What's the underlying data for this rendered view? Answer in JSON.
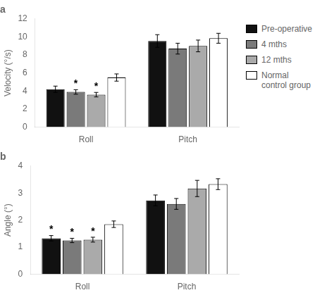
{
  "chart_data": [
    {
      "type": "bar",
      "title": "a",
      "y_label": "Velocity (°/s)",
      "categories": [
        "Roll",
        "Pitch"
      ],
      "series": [
        {
          "name": "Pre-operative",
          "color": "#111111",
          "values": [
            4.2,
            9.55
          ],
          "errors": [
            0.35,
            0.7
          ]
        },
        {
          "name": "4 mths",
          "color": "#7a7a7a",
          "values": [
            3.9,
            8.7
          ],
          "errors": [
            0.25,
            0.6
          ]
        },
        {
          "name": "12 mths",
          "color": "#aaaaaa",
          "values": [
            3.6,
            9.0
          ],
          "errors": [
            0.25,
            0.65
          ]
        },
        {
          "name": "Normal\ncontrol group",
          "color": "#ffffff",
          "values": [
            5.5,
            9.85
          ],
          "errors": [
            0.4,
            0.55
          ]
        }
      ],
      "annotations": [
        {
          "text": "*",
          "category": "Roll",
          "series": "4 mths"
        },
        {
          "text": "*",
          "category": "Roll",
          "series": "12 mths"
        }
      ],
      "ylim": [
        0,
        12
      ],
      "yticks": [
        0,
        2,
        4,
        6,
        8,
        10,
        12
      ],
      "grid": false,
      "legend": "right"
    },
    {
      "type": "bar",
      "title": "b",
      "y_label": "Angle (°)",
      "categories": [
        "Roll",
        "Pitch"
      ],
      "series": [
        {
          "name": "Pre-operative",
          "color": "#111111",
          "values": [
            1.33,
            2.73
          ],
          "errors": [
            0.1,
            0.2
          ]
        },
        {
          "name": "4 mths",
          "color": "#7a7a7a",
          "values": [
            1.25,
            2.6
          ],
          "errors": [
            0.08,
            0.2
          ]
        },
        {
          "name": "12 mths",
          "color": "#aaaaaa",
          "values": [
            1.28,
            3.17
          ],
          "errors": [
            0.09,
            0.3
          ]
        },
        {
          "name": "Normal\ncontrol group",
          "color": "#ffffff",
          "values": [
            1.85,
            3.33
          ],
          "errors": [
            0.12,
            0.2
          ]
        }
      ],
      "annotations": [
        {
          "text": "*",
          "category": "Roll",
          "series": "Pre-operative"
        },
        {
          "text": "*",
          "category": "Roll",
          "series": "4 mths"
        },
        {
          "text": "*",
          "category": "Roll",
          "series": "12 mths"
        }
      ],
      "ylim": [
        0,
        4
      ],
      "yticks": [
        0,
        1,
        2,
        3,
        4
      ],
      "grid": false
    }
  ]
}
